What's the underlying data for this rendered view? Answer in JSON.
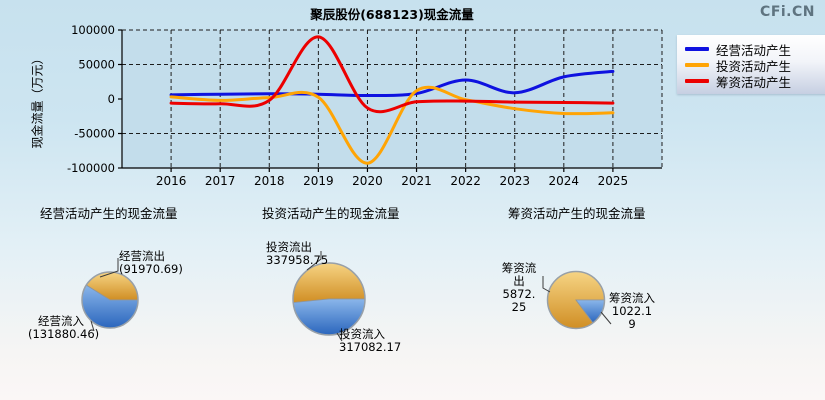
{
  "logo": "CFi.CN",
  "legend": {
    "items": [
      "经营活动产生",
      "投资活动产生",
      "筹资活动产生"
    ]
  },
  "chart_data": [
    {
      "type": "line",
      "title": "聚辰股份(688123)现金流量",
      "xlabel": "",
      "ylabel": "现金流量（万元）",
      "x": [
        2016,
        2017,
        2018,
        2019,
        2020,
        2021,
        2022,
        2023,
        2024,
        2025
      ],
      "ylim": [
        -100000,
        100000
      ],
      "y_tick_step": 50000,
      "grid": true,
      "smooth": true,
      "legend_position": "top-right",
      "series": [
        {
          "name": "经营活动产生",
          "color": "#0f12e0",
          "values": [
            6000,
            7000,
            7500,
            7000,
            5000,
            8000,
            27500,
            9000,
            32000,
            40000
          ]
        },
        {
          "name": "投资活动产生",
          "color": "#ffa405",
          "values": [
            3000,
            -2000,
            2000,
            2500,
            -93000,
            12000,
            -1000,
            -14000,
            -21000,
            -20000
          ]
        },
        {
          "name": "筹资活动产生",
          "color": "#ec0000",
          "values": [
            -6000,
            -7000,
            -2000,
            90000,
            -13000,
            -4000,
            -3000,
            -4500,
            -5000,
            -6000
          ]
        }
      ]
    },
    {
      "type": "pie",
      "title": "经营活动产生的现金流量",
      "slices": [
        {
          "label": "经营流出",
          "value": 91970.69,
          "display": "(91970.69)",
          "color": "#e0a236"
        },
        {
          "label": "经营流入",
          "value": 131880.46,
          "display": "(131880.46)",
          "color": "#3f7fd4"
        }
      ]
    },
    {
      "type": "pie",
      "title": "投资活动产生的现金流量",
      "slices": [
        {
          "label": "投资流出",
          "value": 337958.75,
          "display": "337958.75",
          "color": "#e0a236"
        },
        {
          "label": "投资流入",
          "value": 317082.17,
          "display": "317082.17",
          "color": "#3f7fd4"
        }
      ]
    },
    {
      "type": "pie",
      "title": "筹资活动产生的现金流量",
      "slices": [
        {
          "label": "筹资流出",
          "value": 5872.25,
          "display": "5872.25",
          "color": "#e0a236"
        },
        {
          "label": "筹资流入",
          "value": 1022.19,
          "display": "1022.19",
          "color": "#3f7fd4"
        }
      ]
    }
  ]
}
